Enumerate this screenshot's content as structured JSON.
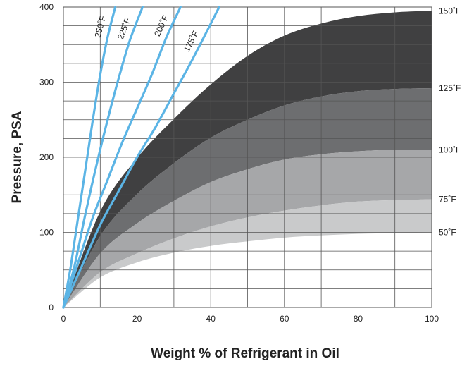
{
  "chart_data": {
    "type": "area",
    "xlabel": "Weight % of Refrigerant in Oil",
    "ylabel": "Pressure, PSA",
    "xlim": [
      0,
      100
    ],
    "ylim": [
      0,
      400
    ],
    "x_ticks": [
      "0",
      "20",
      "40",
      "60",
      "80",
      "100"
    ],
    "y_ticks": [
      "0",
      "100",
      "200",
      "300",
      "400"
    ],
    "grid": true,
    "bands": [
      {
        "name": "150˚F",
        "color": "#404041",
        "lower_x": [
          0,
          10,
          20,
          30,
          40,
          50,
          60,
          70,
          80,
          90,
          100
        ],
        "lower": [
          0,
          95,
          151,
          192,
          226,
          250,
          269,
          281,
          288,
          291,
          292
        ],
        "upper_x": [
          0,
          10,
          20,
          30,
          40,
          50,
          60,
          70,
          80,
          90,
          100
        ],
        "upper": [
          0,
          128,
          199,
          251,
          297,
          335,
          362,
          378,
          388,
          393,
          395
        ]
      },
      {
        "name": "125˚F",
        "color": "#6d6e70",
        "lower_x": [
          0,
          10,
          20,
          30,
          40,
          50,
          60,
          70,
          80,
          90,
          100
        ],
        "lower": [
          0,
          72,
          112,
          142,
          167,
          184,
          197,
          204,
          208,
          210,
          210
        ],
        "upper_x": [
          0,
          10,
          20,
          30,
          40,
          50,
          60,
          70,
          80,
          90,
          100
        ],
        "upper": [
          0,
          95,
          151,
          192,
          226,
          250,
          269,
          281,
          288,
          291,
          292
        ]
      },
      {
        "name": "100˚F",
        "color": "#a6a7a9",
        "lower_x": [
          0,
          10,
          20,
          30,
          40,
          50,
          60,
          70,
          80,
          90,
          100
        ],
        "lower": [
          0,
          47,
          72,
          92,
          108,
          120,
          129,
          136,
          141,
          143,
          144
        ],
        "upper_x": [
          0,
          10,
          20,
          30,
          40,
          50,
          60,
          70,
          80,
          90,
          100
        ],
        "upper": [
          0,
          72,
          112,
          142,
          167,
          184,
          197,
          204,
          208,
          210,
          210
        ]
      },
      {
        "name": "75˚F",
        "color": "#c9cacb",
        "lower_x": [
          0,
          10,
          20,
          30,
          40,
          50,
          60,
          70,
          80,
          90,
          100
        ],
        "lower": [
          0,
          40,
          60,
          73,
          82,
          88,
          93,
          96,
          98,
          99,
          100
        ],
        "upper_x": [
          0,
          10,
          20,
          30,
          40,
          50,
          60,
          70,
          80,
          90,
          100
        ],
        "upper": [
          0,
          47,
          72,
          92,
          108,
          120,
          129,
          136,
          141,
          143,
          144
        ]
      }
    ],
    "band_labels": [
      {
        "label": "150˚F",
        "y": 395
      },
      {
        "label": "125˚F",
        "y": 292
      },
      {
        "label": "100˚F",
        "y": 210
      },
      {
        "label": "75˚F",
        "y": 144
      },
      {
        "label": "50˚F",
        "y": 100
      }
    ],
    "series": [
      {
        "name": "250˚F",
        "color": "#5bb4e5",
        "x": [
          0,
          2,
          4,
          6,
          8,
          10,
          12,
          14.1
        ],
        "y": [
          0,
          55,
          120,
          185,
          250,
          310,
          360,
          400
        ]
      },
      {
        "name": "225˚F",
        "color": "#5bb4e5",
        "x": [
          0,
          3,
          6,
          9,
          12,
          15,
          18,
          21.5
        ],
        "y": [
          0,
          55,
          125,
          190,
          250,
          305,
          355,
          400
        ]
      },
      {
        "name": "200˚F",
        "color": "#5bb4e5",
        "x": [
          0,
          4,
          8,
          12,
          16,
          20,
          24,
          28,
          31.8
        ],
        "y": [
          0,
          60,
          120,
          170,
          220,
          265,
          310,
          360,
          400
        ]
      },
      {
        "name": "175˚F",
        "color": "#5bb4e5",
        "x": [
          0,
          5,
          10,
          15,
          20,
          25,
          30,
          35,
          42.3
        ],
        "y": [
          0,
          55,
          110,
          155,
          200,
          240,
          285,
          330,
          400
        ]
      }
    ]
  }
}
